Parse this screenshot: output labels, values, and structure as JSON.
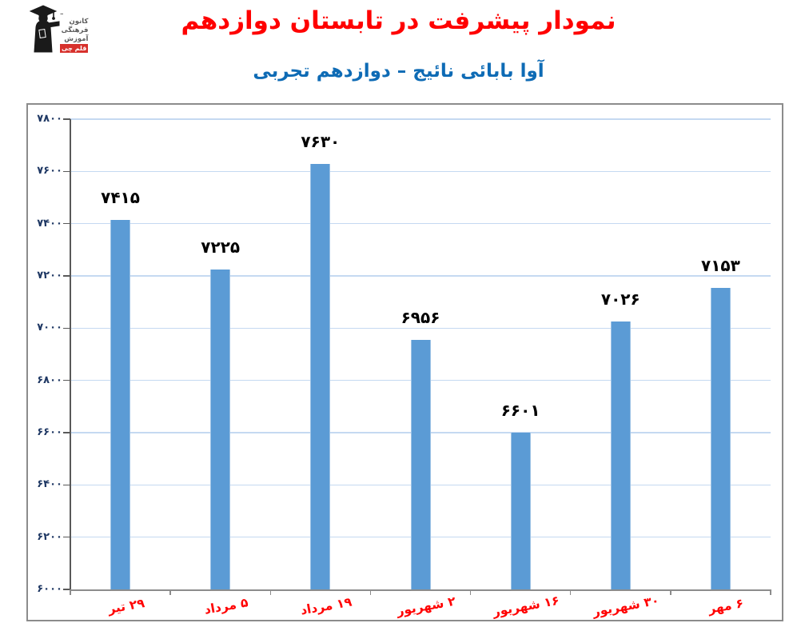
{
  "header": {
    "title": "نمودار پیشرفت در تابستان دوازدهم",
    "title_color": "#FF0000",
    "subtitle": "آوا بابائی نائیج – دوازدهم تجربی",
    "subtitle_color": "#0E6BB5"
  },
  "logo": {
    "name": "کانون فرهنگی آموزش قلم چی",
    "dash": "–",
    "lines": [
      "کانون",
      "فرهنگی",
      "آموزش"
    ],
    "badge": "قلم چی",
    "badge_color": "#D7312C",
    "figure_color": "#1a1a1a"
  },
  "chart_data": {
    "type": "bar",
    "title": "نمودار پیشرفت در تابستان دوازدهم",
    "xlabel": "",
    "ylabel": "",
    "categories": [
      "۲۹ تیر",
      "۵ مرداد",
      "۱۹ مرداد",
      "۲ شهریور",
      "۱۶ شهریور",
      "۳۰ شهریور",
      "۶ مهر"
    ],
    "values": [
      7415,
      7225,
      7630,
      6956,
      6601,
      7026,
      7153
    ],
    "value_labels": [
      "۷۴۱۵",
      "۷۲۲۵",
      "۷۶۳۰",
      "۶۹۵۶",
      "۶۶۰۱",
      "۷۰۲۶",
      "۷۱۵۳"
    ],
    "ylim": [
      6000,
      7800
    ],
    "y_ticks": [
      6000,
      6200,
      6400,
      6600,
      6800,
      7000,
      7200,
      7400,
      7600,
      7800
    ],
    "y_tick_labels": [
      "۶۰۰۰",
      "۶۲۰۰",
      "۶۴۰۰",
      "۶۶۰۰",
      "۶۸۰۰",
      "۷۰۰۰",
      "۷۲۰۰",
      "۷۴۰۰",
      "۷۶۰۰",
      "۷۸۰۰"
    ],
    "grid": true,
    "legend": false,
    "bar_color": "#5B9BD5",
    "bar_border_color": "#9CC2E5",
    "gridline_color": "#C5D9F1",
    "axis_color": "#8c8c8c",
    "tick_color": "#595959",
    "y_label_color": "#1F3864",
    "x_label_color": "#FF0000",
    "value_label_color": "#000000"
  }
}
